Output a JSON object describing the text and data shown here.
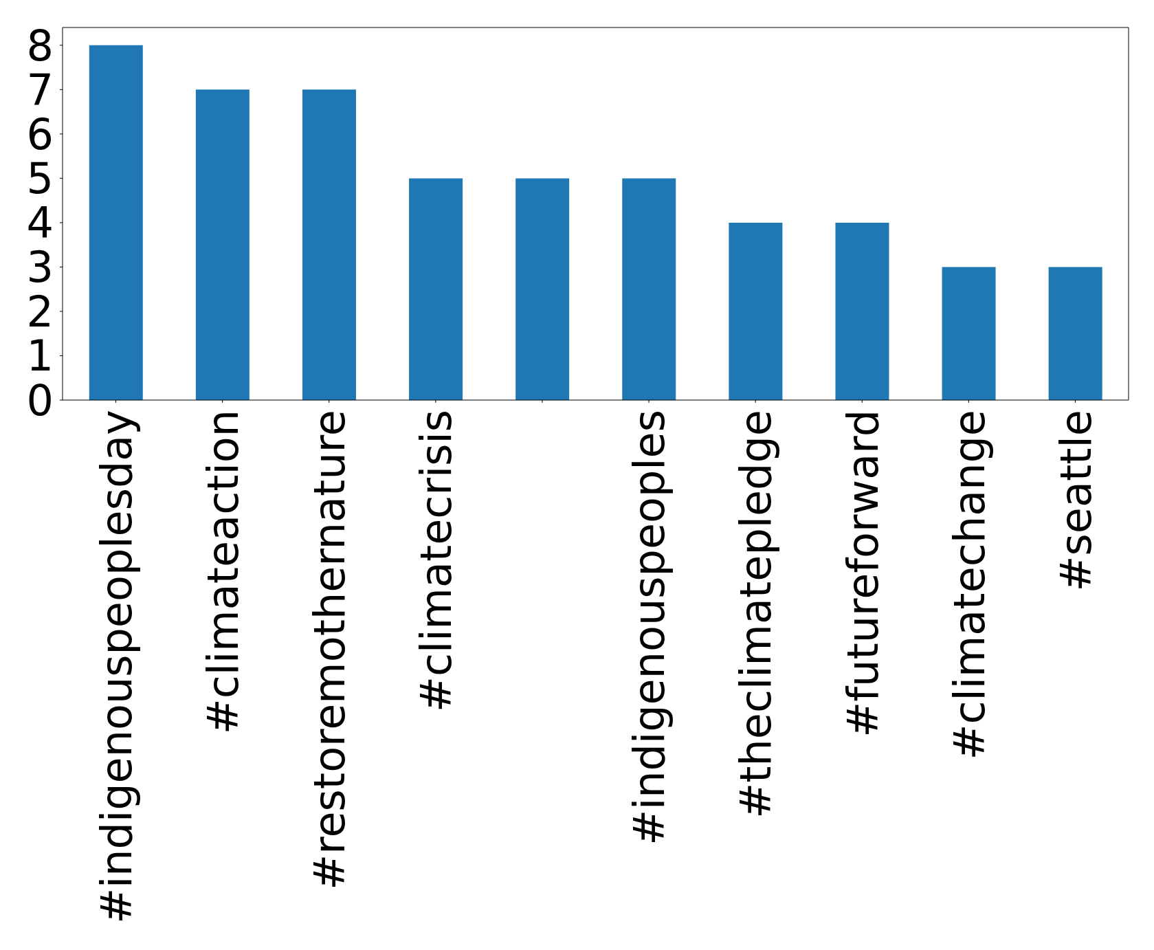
{
  "chart_data": {
    "type": "bar",
    "categories": [
      "#indigenouspeoplesday",
      "#climateaction",
      "#restoremothernature",
      "#climatecrisis",
      null,
      "#indigenouspeoples",
      "#theclimatepledge",
      "#futureforward",
      "#climatechange",
      "#seattle"
    ],
    "values": [
      8,
      7,
      7,
      5,
      5,
      5,
      4,
      4,
      3,
      3
    ],
    "color": "#1f77b4",
    "ylim": [
      0,
      8.4
    ],
    "yticks": [
      0,
      1,
      2,
      3,
      4,
      5,
      6,
      7,
      8
    ]
  }
}
